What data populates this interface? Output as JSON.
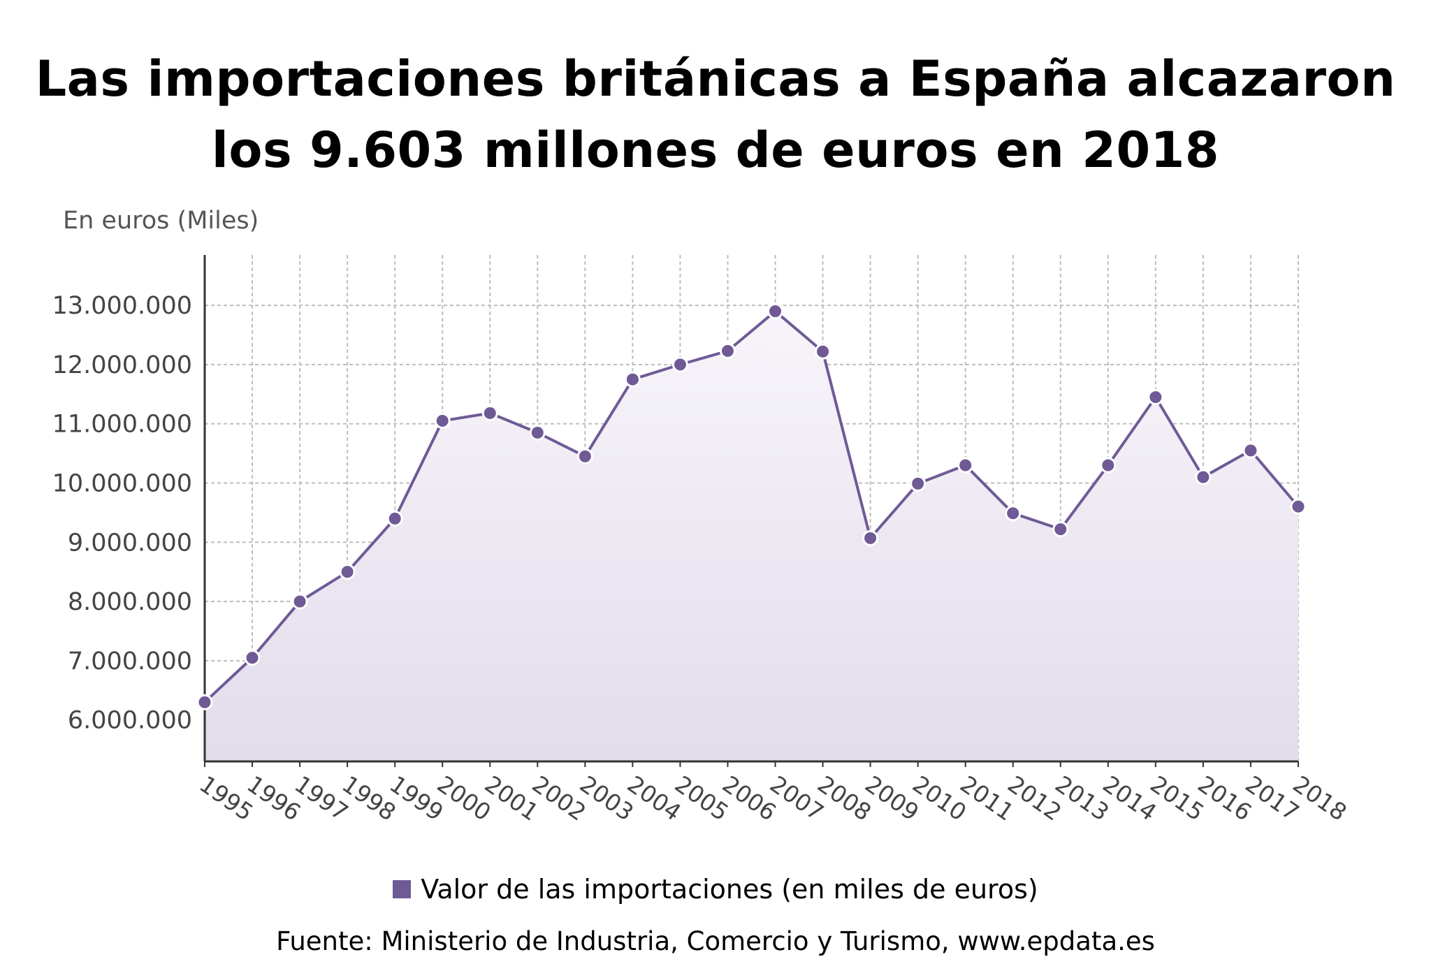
{
  "title": {
    "line1": "Las importaciones británicas a España alcazaron",
    "line2": "los 9.603 millones de euros en 2018"
  },
  "legend_label": "Valor de las importaciones (en miles de euros)",
  "source": "Fuente: Ministerio de Industria, Comercio y Turismo, www.epdata.es",
  "colors": {
    "line": "#6f5a96",
    "area_top": "#f7f5fa",
    "area_bottom": "#e2dceb",
    "grid": "#bdbdbd"
  },
  "chart_data": {
    "type": "area",
    "ylabel": "En euros (Miles)",
    "xlabel": "",
    "ylim": [
      5300000,
      13850000
    ],
    "ytick_values": [
      6000000,
      7000000,
      8000000,
      9000000,
      10000000,
      11000000,
      12000000,
      13000000
    ],
    "ytick_labels": [
      "6.000.000",
      "7.000.000",
      "8.000.000",
      "9.000.000",
      "10.000.000",
      "11.000.000",
      "12.000.000",
      "13.000.000"
    ],
    "categories": [
      "1995",
      "1996",
      "1997",
      "1998",
      "1999",
      "2000",
      "2001",
      "2002",
      "2003",
      "2004",
      "2005",
      "2006",
      "2007",
      "2008",
      "2009",
      "2010",
      "2011",
      "2012",
      "2013",
      "2014",
      "2015",
      "2016",
      "2017",
      "2018"
    ],
    "series": [
      {
        "name": "Valor de las importaciones (en miles de euros)",
        "values": [
          6300000,
          7050000,
          8000000,
          8500000,
          9400000,
          11050000,
          11180000,
          10850000,
          10450000,
          11750000,
          12000000,
          12230000,
          12900000,
          12220000,
          9070000,
          9990000,
          10300000,
          9490000,
          9220000,
          10300000,
          11450000,
          10100000,
          10550000,
          9603000
        ]
      }
    ],
    "grid": true,
    "legend_position": "bottom"
  }
}
